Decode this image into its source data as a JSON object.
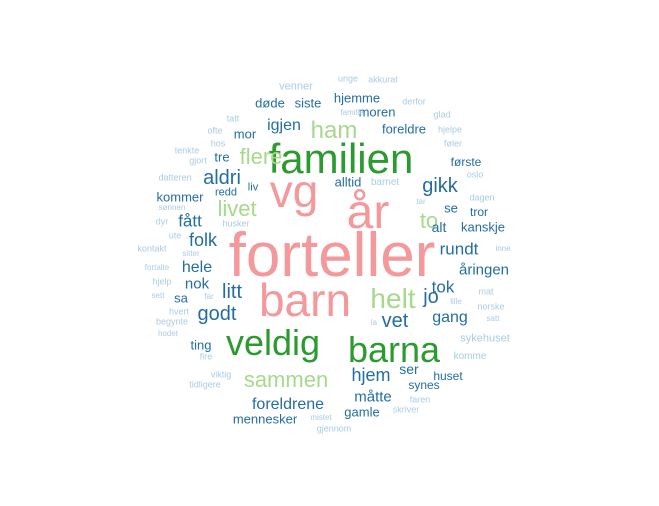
{
  "palette": {
    "pink": "#f4999b",
    "green_dark": "#2b9a2f",
    "green_light": "#a7d98c",
    "blue_dark": "#246da3",
    "blue_light": "#a9cce3"
  },
  "words": [
    {
      "text": "forteller",
      "color": "pink"
    },
    {
      "text": "barn",
      "color": "pink"
    },
    {
      "text": "år",
      "color": "pink"
    },
    {
      "text": "vg",
      "color": "pink"
    },
    {
      "text": "familien",
      "color": "green_dark"
    },
    {
      "text": "veldig",
      "color": "green_dark"
    },
    {
      "text": "barna",
      "color": "green_dark"
    },
    {
      "text": "helt",
      "color": "green_light"
    },
    {
      "text": "ham",
      "color": "green_light"
    },
    {
      "text": "flere",
      "color": "green_light"
    },
    {
      "text": "livet",
      "color": "green_light"
    },
    {
      "text": "sammen",
      "color": "green_light"
    },
    {
      "text": "to",
      "color": "green_light"
    },
    {
      "text": "aldri",
      "color": "blue_dark"
    },
    {
      "text": "gikk",
      "color": "blue_dark"
    },
    {
      "text": "folk",
      "color": "blue_dark"
    },
    {
      "text": "litt",
      "color": "blue_dark"
    },
    {
      "text": "godt",
      "color": "blue_dark"
    },
    {
      "text": "vet",
      "color": "blue_dark"
    },
    {
      "text": "jo",
      "color": "blue_dark"
    },
    {
      "text": "tok",
      "color": "blue_dark"
    },
    {
      "text": "hjem",
      "color": "blue_dark"
    },
    {
      "text": "gang",
      "color": "blue_dark"
    },
    {
      "text": "fått",
      "color": "blue_dark"
    },
    {
      "text": "hele",
      "color": "blue_dark"
    },
    {
      "text": "nok",
      "color": "blue_dark"
    },
    {
      "text": "igjen",
      "color": "blue_dark"
    },
    {
      "text": "rundt",
      "color": "blue_dark"
    },
    {
      "text": "måtte",
      "color": "blue_dark"
    },
    {
      "text": "foreldrene",
      "color": "blue_dark"
    },
    {
      "text": "alt",
      "color": "blue_dark"
    },
    {
      "text": "se",
      "color": "blue_dark"
    },
    {
      "text": "åringen",
      "color": "blue_dark"
    },
    {
      "text": "ser",
      "color": "blue_dark"
    },
    {
      "text": "hjemme",
      "color": "blue_dark"
    },
    {
      "text": "moren",
      "color": "blue_dark"
    },
    {
      "text": "foreldre",
      "color": "blue_dark"
    },
    {
      "text": "mor",
      "color": "blue_dark"
    },
    {
      "text": "kommer",
      "color": "blue_dark"
    },
    {
      "text": "døde",
      "color": "blue_dark"
    },
    {
      "text": "siste",
      "color": "blue_dark"
    },
    {
      "text": "tre",
      "color": "blue_dark"
    },
    {
      "text": "alltid",
      "color": "blue_dark"
    },
    {
      "text": "gamle",
      "color": "blue_dark"
    },
    {
      "text": "mennesker",
      "color": "blue_dark"
    },
    {
      "text": "kanskje",
      "color": "blue_dark"
    },
    {
      "text": "tror",
      "color": "blue_dark"
    },
    {
      "text": "første",
      "color": "blue_dark"
    },
    {
      "text": "sa",
      "color": "blue_dark"
    },
    {
      "text": "ting",
      "color": "blue_dark"
    },
    {
      "text": "huset",
      "color": "blue_dark"
    },
    {
      "text": "synes",
      "color": "blue_dark"
    },
    {
      "text": "redd",
      "color": "blue_dark"
    },
    {
      "text": "liv",
      "color": "blue_dark"
    },
    {
      "text": "venner",
      "color": "blue_light"
    },
    {
      "text": "unge",
      "color": "blue_light"
    },
    {
      "text": "akkurat",
      "color": "blue_light"
    },
    {
      "text": "tatt",
      "color": "blue_light"
    },
    {
      "text": "familie",
      "color": "blue_light"
    },
    {
      "text": "derfor",
      "color": "blue_light"
    },
    {
      "text": "glad",
      "color": "blue_light"
    },
    {
      "text": "ofte",
      "color": "blue_light"
    },
    {
      "text": "hjelpe",
      "color": "blue_light"
    },
    {
      "text": "hos",
      "color": "blue_light"
    },
    {
      "text": "føler",
      "color": "blue_light"
    },
    {
      "text": "tenkte",
      "color": "blue_light"
    },
    {
      "text": "gjort",
      "color": "blue_light"
    },
    {
      "text": "oslo",
      "color": "blue_light"
    },
    {
      "text": "datteren",
      "color": "blue_light"
    },
    {
      "text": "barnet",
      "color": "blue_light"
    },
    {
      "text": "dagen",
      "color": "blue_light"
    },
    {
      "text": "sønnen",
      "color": "blue_light"
    },
    {
      "text": "tar",
      "color": "blue_light"
    },
    {
      "text": "dyr",
      "color": "blue_light"
    },
    {
      "text": "husker",
      "color": "blue_light"
    },
    {
      "text": "ute",
      "color": "blue_light"
    },
    {
      "text": "kontakt",
      "color": "blue_light"
    },
    {
      "text": "inne",
      "color": "blue_light"
    },
    {
      "text": "sitter",
      "color": "blue_light"
    },
    {
      "text": "fortalte",
      "color": "blue_light"
    },
    {
      "text": "hjelp",
      "color": "blue_light"
    },
    {
      "text": "mat",
      "color": "blue_light"
    },
    {
      "text": "sett",
      "color": "blue_light"
    },
    {
      "text": "far",
      "color": "blue_light"
    },
    {
      "text": "lille",
      "color": "blue_light"
    },
    {
      "text": "norske",
      "color": "blue_light"
    },
    {
      "text": "hvert",
      "color": "blue_light"
    },
    {
      "text": "begynte",
      "color": "blue_light"
    },
    {
      "text": "la",
      "color": "blue_light"
    },
    {
      "text": "satt",
      "color": "blue_light"
    },
    {
      "text": "hodet",
      "color": "blue_light"
    },
    {
      "text": "sykehuset",
      "color": "blue_light"
    },
    {
      "text": "fire",
      "color": "blue_light"
    },
    {
      "text": "komme",
      "color": "blue_light"
    },
    {
      "text": "viktig",
      "color": "blue_light"
    },
    {
      "text": "tidligere",
      "color": "blue_light"
    },
    {
      "text": "faren",
      "color": "blue_light"
    },
    {
      "text": "mistet",
      "color": "blue_light"
    },
    {
      "text": "skriver",
      "color": "blue_light"
    },
    {
      "text": "gjennom",
      "color": "blue_light"
    }
  ]
}
